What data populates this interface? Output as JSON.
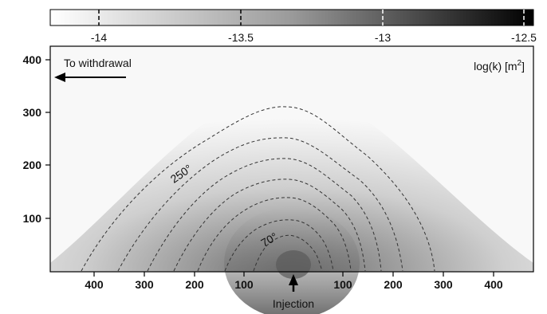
{
  "colorbar": {
    "tick_labels": [
      "-14",
      "-13.5",
      "-13",
      "-12.5"
    ],
    "label": "log(k) [m",
    "label_sup": "2",
    "label_close": "]"
  },
  "y_axis": {
    "tick_labels": [
      "400",
      "300",
      "200",
      "100"
    ]
  },
  "x_axis": {
    "left_tick_labels": [
      "400",
      "300",
      "200",
      "100"
    ],
    "right_tick_labels": [
      "100",
      "200",
      "300",
      "400"
    ]
  },
  "annotations": {
    "withdrawal": "To withdrawal",
    "injection": "Injection",
    "contour_outer": "250°",
    "contour_inner": "70°"
  },
  "colors": {
    "background_low": "#f7f7f7",
    "high": "#111111",
    "contour": "#333333"
  }
}
